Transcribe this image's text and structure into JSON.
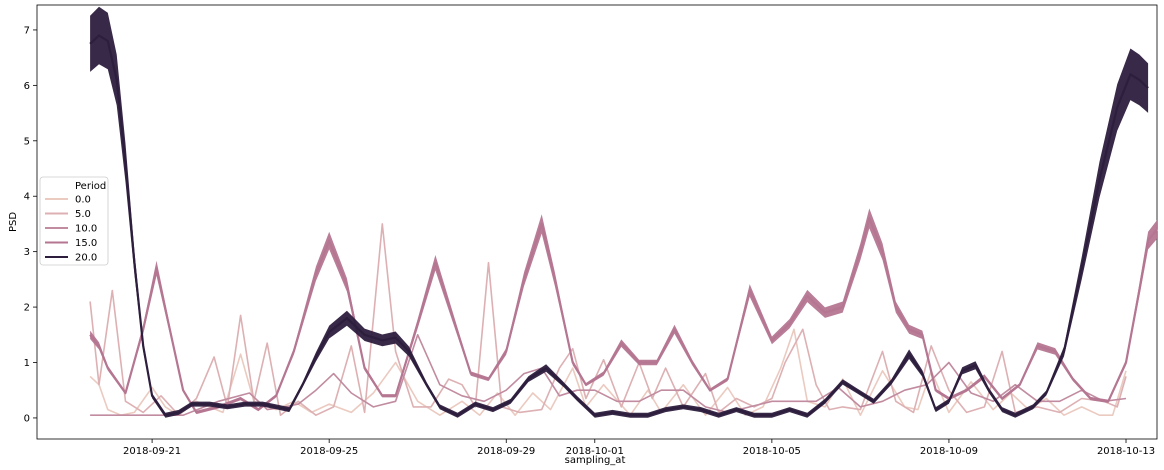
{
  "chart_data": {
    "type": "line",
    "title": "",
    "xlabel": "sampling_at",
    "ylabel": "PSD",
    "x_ticks": [
      "2018-09-21",
      "2018-09-25",
      "2018-09-29",
      "2018-10-01",
      "2018-10-05",
      "2018-10-09",
      "2018-10-13"
    ],
    "x_tick_days": [
      2.0,
      6.0,
      10.0,
      12.0,
      16.0,
      20.0,
      24.0
    ],
    "xlim": [
      -0.6,
      24.7
    ],
    "ylim": [
      -0.38,
      7.45
    ],
    "y_ticks": [
      0,
      1,
      2,
      3,
      4,
      5,
      6,
      7
    ],
    "legend": {
      "title": "Period",
      "location": "center-left",
      "entries": [
        "0.0",
        "5.0",
        "10.0",
        "15.0",
        "20.0"
      ]
    },
    "series": [
      {
        "name": "0.0",
        "color": "#ebcac0",
        "band": 0.0,
        "points": [
          [
            0.6,
            0.75
          ],
          [
            0.8,
            0.6
          ],
          [
            1.0,
            0.15
          ],
          [
            1.3,
            0.05
          ],
          [
            1.6,
            0.1
          ],
          [
            2.0,
            0.55
          ],
          [
            2.3,
            0.2
          ],
          [
            2.6,
            0.05
          ],
          [
            3.0,
            0.3
          ],
          [
            3.3,
            0.2
          ],
          [
            3.6,
            0.1
          ],
          [
            4.0,
            1.15
          ],
          [
            4.3,
            0.3
          ],
          [
            4.8,
            0.15
          ],
          [
            5.2,
            0.3
          ],
          [
            5.6,
            0.1
          ],
          [
            6.0,
            0.25
          ],
          [
            6.5,
            0.1
          ],
          [
            7.0,
            0.45
          ],
          [
            7.5,
            1.0
          ],
          [
            8.0,
            0.3
          ],
          [
            8.5,
            0.05
          ],
          [
            9.0,
            0.3
          ],
          [
            9.4,
            0.05
          ],
          [
            9.8,
            0.45
          ],
          [
            10.2,
            0.05
          ],
          [
            10.6,
            0.45
          ],
          [
            11.0,
            0.15
          ],
          [
            11.5,
            0.9
          ],
          [
            11.8,
            0.2
          ],
          [
            12.2,
            0.6
          ],
          [
            12.8,
            0.05
          ],
          [
            13.2,
            0.5
          ],
          [
            13.5,
            0.1
          ],
          [
            14.0,
            0.6
          ],
          [
            14.5,
            0.05
          ],
          [
            15.0,
            0.55
          ],
          [
            15.4,
            0.05
          ],
          [
            15.8,
            0.2
          ],
          [
            16.2,
            0.9
          ],
          [
            16.5,
            1.6
          ],
          [
            16.8,
            0.3
          ],
          [
            17.2,
            0.2
          ],
          [
            17.6,
            0.7
          ],
          [
            18.0,
            0.05
          ],
          [
            18.5,
            0.85
          ],
          [
            19.0,
            0.2
          ],
          [
            19.3,
            0.15
          ],
          [
            19.6,
            0.85
          ],
          [
            20.0,
            0.1
          ],
          [
            20.5,
            0.65
          ],
          [
            21.0,
            0.15
          ],
          [
            21.4,
            0.45
          ],
          [
            21.8,
            0.15
          ],
          [
            22.2,
            0.35
          ],
          [
            22.6,
            0.05
          ],
          [
            23.0,
            0.2
          ],
          [
            23.4,
            0.05
          ],
          [
            23.7,
            0.05
          ],
          [
            24.0,
            0.85
          ]
        ]
      },
      {
        "name": "5.0",
        "color": "#ddb0b3",
        "band": 0.0,
        "points": [
          [
            0.6,
            2.1
          ],
          [
            0.8,
            0.6
          ],
          [
            1.1,
            2.3
          ],
          [
            1.4,
            0.3
          ],
          [
            1.8,
            0.1
          ],
          [
            2.2,
            0.4
          ],
          [
            2.6,
            0.05
          ],
          [
            3.0,
            0.35
          ],
          [
            3.4,
            1.1
          ],
          [
            3.7,
            0.2
          ],
          [
            4.0,
            1.85
          ],
          [
            4.3,
            0.3
          ],
          [
            4.6,
            1.35
          ],
          [
            4.9,
            0.05
          ],
          [
            5.3,
            0.3
          ],
          [
            5.7,
            0.05
          ],
          [
            6.1,
            0.2
          ],
          [
            6.5,
            1.3
          ],
          [
            6.8,
            0.1
          ],
          [
            7.2,
            3.5
          ],
          [
            7.5,
            1.2
          ],
          [
            7.9,
            0.2
          ],
          [
            8.3,
            0.2
          ],
          [
            8.7,
            0.7
          ],
          [
            9.0,
            0.6
          ],
          [
            9.3,
            0.2
          ],
          [
            9.6,
            2.8
          ],
          [
            9.9,
            0.2
          ],
          [
            10.3,
            0.1
          ],
          [
            10.8,
            0.15
          ],
          [
            11.2,
            0.9
          ],
          [
            11.5,
            1.25
          ],
          [
            11.8,
            0.35
          ],
          [
            12.2,
            1.05
          ],
          [
            12.6,
            0.2
          ],
          [
            13.0,
            1.0
          ],
          [
            13.3,
            0.35
          ],
          [
            13.6,
            0.9
          ],
          [
            14.0,
            0.2
          ],
          [
            14.5,
            0.8
          ],
          [
            14.8,
            0.1
          ],
          [
            15.2,
            0.35
          ],
          [
            15.6,
            0.2
          ],
          [
            16.0,
            0.35
          ],
          [
            16.3,
            1.0
          ],
          [
            16.7,
            1.6
          ],
          [
            17.0,
            0.6
          ],
          [
            17.3,
            0.15
          ],
          [
            17.6,
            0.2
          ],
          [
            18.0,
            0.15
          ],
          [
            18.5,
            1.2
          ],
          [
            18.8,
            0.3
          ],
          [
            19.2,
            0.1
          ],
          [
            19.6,
            1.3
          ],
          [
            20.0,
            0.5
          ],
          [
            20.4,
            0.1
          ],
          [
            20.8,
            0.2
          ],
          [
            21.2,
            1.2
          ],
          [
            21.5,
            0.1
          ],
          [
            22.0,
            0.2
          ],
          [
            22.5,
            0.1
          ],
          [
            23.0,
            0.35
          ],
          [
            23.5,
            0.3
          ],
          [
            23.8,
            0.2
          ],
          [
            24.0,
            0.75
          ]
        ]
      },
      {
        "name": "10.0",
        "color": "#c18ba0",
        "band": 0.0,
        "points": [
          [
            0.6,
            0.05
          ],
          [
            1.2,
            0.05
          ],
          [
            2.0,
            0.05
          ],
          [
            2.7,
            0.05
          ],
          [
            3.5,
            0.3
          ],
          [
            4.2,
            0.45
          ],
          [
            4.6,
            0.15
          ],
          [
            5.0,
            0.2
          ],
          [
            5.3,
            0.25
          ],
          [
            5.7,
            0.5
          ],
          [
            6.1,
            0.8
          ],
          [
            6.5,
            0.45
          ],
          [
            7.0,
            0.2
          ],
          [
            7.5,
            0.3
          ],
          [
            8.0,
            1.5
          ],
          [
            8.5,
            0.6
          ],
          [
            9.0,
            0.4
          ],
          [
            9.5,
            0.3
          ],
          [
            10.0,
            0.5
          ],
          [
            10.4,
            0.8
          ],
          [
            10.8,
            0.9
          ],
          [
            11.2,
            0.4
          ],
          [
            11.6,
            0.5
          ],
          [
            12.0,
            0.5
          ],
          [
            12.5,
            0.3
          ],
          [
            13.0,
            0.3
          ],
          [
            13.5,
            0.5
          ],
          [
            14.0,
            0.5
          ],
          [
            14.5,
            0.2
          ],
          [
            15.0,
            0.1
          ],
          [
            15.5,
            0.2
          ],
          [
            16.0,
            0.3
          ],
          [
            16.5,
            0.3
          ],
          [
            17.0,
            0.3
          ],
          [
            17.5,
            0.55
          ],
          [
            18.0,
            0.2
          ],
          [
            18.5,
            0.3
          ],
          [
            19.0,
            0.5
          ],
          [
            19.5,
            0.6
          ],
          [
            20.0,
            1.0
          ],
          [
            20.5,
            0.45
          ],
          [
            21.0,
            0.3
          ],
          [
            21.5,
            0.6
          ],
          [
            22.0,
            0.3
          ],
          [
            22.5,
            0.3
          ],
          [
            23.0,
            0.5
          ],
          [
            23.5,
            0.3
          ],
          [
            24.0,
            0.35
          ]
        ]
      },
      {
        "name": "15.0",
        "color": "#b57692",
        "band": 0.1,
        "points": [
          [
            0.6,
            1.5
          ],
          [
            0.8,
            1.3
          ],
          [
            1.0,
            0.9
          ],
          [
            1.4,
            0.45
          ],
          [
            1.8,
            1.6
          ],
          [
            2.1,
            2.7
          ],
          [
            2.4,
            1.6
          ],
          [
            2.7,
            0.5
          ],
          [
            3.0,
            0.1
          ],
          [
            3.5,
            0.2
          ],
          [
            4.0,
            0.35
          ],
          [
            4.4,
            0.15
          ],
          [
            4.8,
            0.4
          ],
          [
            5.2,
            1.2
          ],
          [
            5.7,
            2.6
          ],
          [
            6.0,
            3.2
          ],
          [
            6.4,
            2.4
          ],
          [
            6.8,
            0.9
          ],
          [
            7.2,
            0.4
          ],
          [
            7.5,
            0.4
          ],
          [
            8.0,
            1.7
          ],
          [
            8.4,
            2.8
          ],
          [
            8.8,
            1.8
          ],
          [
            9.2,
            0.8
          ],
          [
            9.6,
            0.7
          ],
          [
            10.0,
            1.2
          ],
          [
            10.4,
            2.5
          ],
          [
            10.8,
            3.5
          ],
          [
            11.1,
            2.5
          ],
          [
            11.5,
            1.0
          ],
          [
            11.8,
            0.6
          ],
          [
            12.2,
            0.8
          ],
          [
            12.6,
            1.35
          ],
          [
            13.0,
            1.0
          ],
          [
            13.4,
            1.0
          ],
          [
            13.8,
            1.6
          ],
          [
            14.2,
            1.0
          ],
          [
            14.6,
            0.5
          ],
          [
            15.0,
            0.7
          ],
          [
            15.5,
            2.3
          ],
          [
            16.0,
            1.4
          ],
          [
            16.4,
            1.7
          ],
          [
            16.8,
            2.2
          ],
          [
            17.2,
            1.9
          ],
          [
            17.6,
            2.0
          ],
          [
            18.0,
            3.0
          ],
          [
            18.2,
            3.6
          ],
          [
            18.5,
            3.0
          ],
          [
            18.8,
            2.0
          ],
          [
            19.1,
            1.6
          ],
          [
            19.4,
            1.5
          ],
          [
            19.7,
            0.5
          ],
          [
            20.0,
            0.35
          ],
          [
            20.4,
            0.5
          ],
          [
            20.8,
            0.75
          ],
          [
            21.2,
            0.35
          ],
          [
            21.6,
            0.6
          ],
          [
            22.0,
            1.3
          ],
          [
            22.4,
            1.2
          ],
          [
            22.8,
            0.7
          ],
          [
            23.2,
            0.35
          ],
          [
            23.6,
            0.3
          ],
          [
            24.0,
            1.0
          ],
          [
            24.3,
            2.3
          ],
          [
            24.5,
            3.2
          ],
          [
            24.7,
            3.4
          ]
        ]
      },
      {
        "name": "20.0",
        "color": "#2d1e3e",
        "band": 0.15,
        "points": [
          [
            0.6,
            6.75
          ],
          [
            0.8,
            6.9
          ],
          [
            1.0,
            6.8
          ],
          [
            1.2,
            6.1
          ],
          [
            1.4,
            4.6
          ],
          [
            1.6,
            2.8
          ],
          [
            1.8,
            1.3
          ],
          [
            2.0,
            0.4
          ],
          [
            2.3,
            0.05
          ],
          [
            2.6,
            0.1
          ],
          [
            2.9,
            0.25
          ],
          [
            3.3,
            0.25
          ],
          [
            3.7,
            0.2
          ],
          [
            4.1,
            0.25
          ],
          [
            4.5,
            0.25
          ],
          [
            4.8,
            0.2
          ],
          [
            5.1,
            0.15
          ],
          [
            5.4,
            0.6
          ],
          [
            5.7,
            1.1
          ],
          [
            6.0,
            1.55
          ],
          [
            6.4,
            1.8
          ],
          [
            6.8,
            1.5
          ],
          [
            7.2,
            1.4
          ],
          [
            7.5,
            1.45
          ],
          [
            7.8,
            1.2
          ],
          [
            8.2,
            0.6
          ],
          [
            8.5,
            0.2
          ],
          [
            8.9,
            0.05
          ],
          [
            9.3,
            0.25
          ],
          [
            9.7,
            0.15
          ],
          [
            10.1,
            0.3
          ],
          [
            10.5,
            0.7
          ],
          [
            10.9,
            0.9
          ],
          [
            11.3,
            0.6
          ],
          [
            11.6,
            0.35
          ],
          [
            12.0,
            0.05
          ],
          [
            12.4,
            0.1
          ],
          [
            12.8,
            0.05
          ],
          [
            13.2,
            0.05
          ],
          [
            13.6,
            0.15
          ],
          [
            14.0,
            0.2
          ],
          [
            14.4,
            0.15
          ],
          [
            14.8,
            0.05
          ],
          [
            15.2,
            0.15
          ],
          [
            15.6,
            0.05
          ],
          [
            16.0,
            0.05
          ],
          [
            16.4,
            0.15
          ],
          [
            16.8,
            0.05
          ],
          [
            17.2,
            0.3
          ],
          [
            17.6,
            0.65
          ],
          [
            17.9,
            0.5
          ],
          [
            18.3,
            0.3
          ],
          [
            18.7,
            0.65
          ],
          [
            19.1,
            1.15
          ],
          [
            19.4,
            0.8
          ],
          [
            19.7,
            0.15
          ],
          [
            20.0,
            0.3
          ],
          [
            20.3,
            0.85
          ],
          [
            20.6,
            0.95
          ],
          [
            20.9,
            0.5
          ],
          [
            21.2,
            0.15
          ],
          [
            21.5,
            0.05
          ],
          [
            21.9,
            0.2
          ],
          [
            22.2,
            0.45
          ],
          [
            22.6,
            1.2
          ],
          [
            23.0,
            2.7
          ],
          [
            23.4,
            4.3
          ],
          [
            23.8,
            5.6
          ],
          [
            24.1,
            6.2
          ],
          [
            24.3,
            6.1
          ],
          [
            24.5,
            5.95
          ]
        ]
      }
    ]
  }
}
